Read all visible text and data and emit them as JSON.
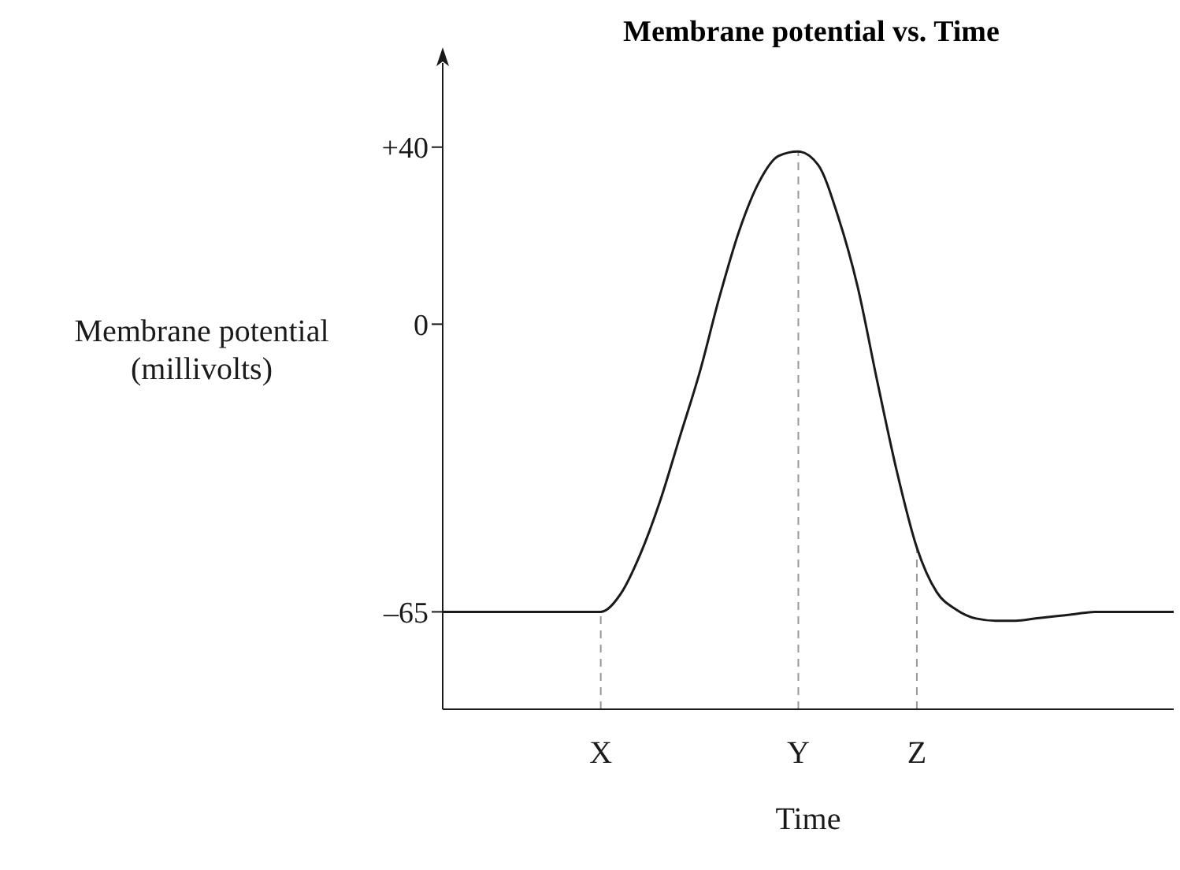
{
  "chart_data": {
    "type": "line",
    "title": "Membrane potential vs. Time",
    "xlabel": "Time",
    "ylabel": "Membrane potential (millivolts)",
    "categories": [
      null,
      null,
      null,
      null,
      null,
      null,
      null,
      null,
      "X",
      null,
      null,
      null,
      null,
      null,
      null,
      null,
      null,
      null,
      "Y",
      null,
      null,
      null,
      null,
      null,
      "Z",
      null,
      null,
      null,
      null,
      null,
      null,
      null,
      null,
      null,
      null,
      null,
      null,
      null
    ],
    "series": [
      {
        "color": "#1a1a1a",
        "values": [
          -65,
          -65,
          -65,
          -65,
          -65,
          -65,
          -65,
          -65,
          -65,
          -61,
          -52,
          -40,
          -25.5,
          -11,
          6,
          21,
          32,
          38,
          39,
          36,
          24.5,
          8.5,
          -13,
          -33.5,
          -50.5,
          -60.5,
          -64.5,
          -66.5,
          -67,
          -67,
          -66.5,
          -66,
          -65.5,
          -65,
          -65,
          -65,
          -65,
          -65
        ]
      }
    ],
    "ylim": [
      -87,
      59
    ],
    "yticks": [
      {
        "value": 40,
        "label": "+40"
      },
      0,
      {
        "value": -65,
        "label": "–65"
      }
    ],
    "ref_lines": [
      {
        "axis": "x",
        "value": "X",
        "color": "#999999",
        "line_style": "dashed"
      },
      {
        "axis": "x",
        "value": "Y",
        "color": "#999999",
        "line_style": "dashed"
      },
      {
        "axis": "x",
        "value": "Z",
        "color": "#999999",
        "line_style": "dashed"
      }
    ],
    "grid": false,
    "legend": false,
    "marker": "none",
    "line_style": "solid"
  }
}
